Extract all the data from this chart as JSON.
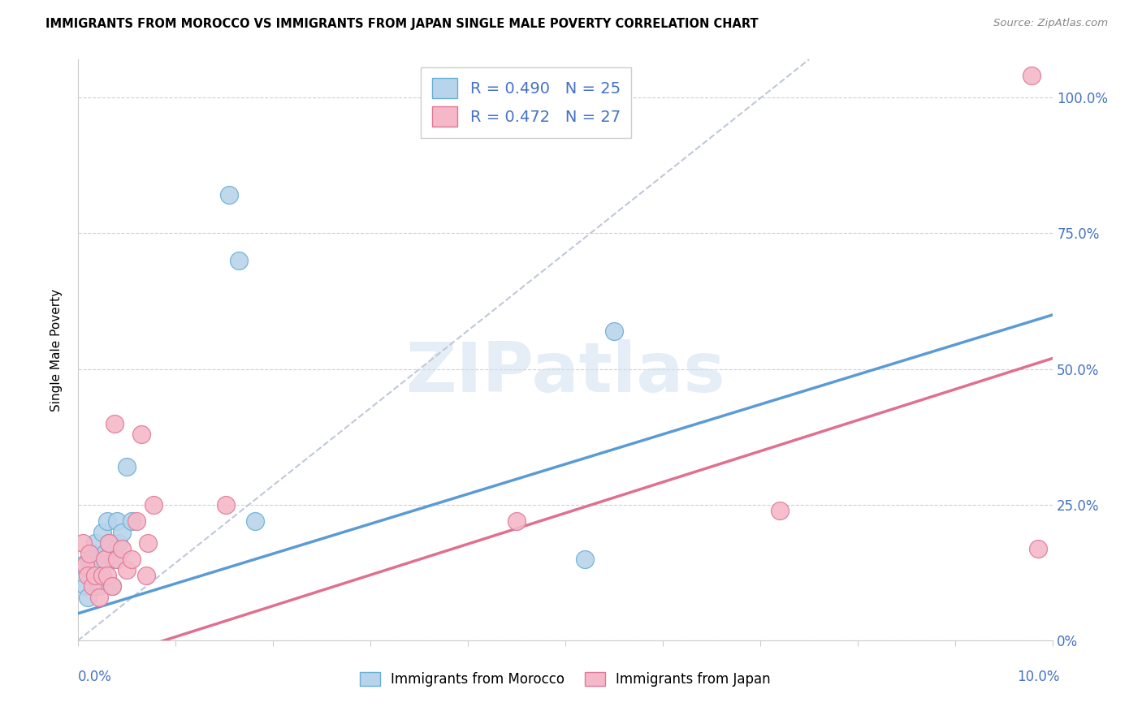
{
  "title": "IMMIGRANTS FROM MOROCCO VS IMMIGRANTS FROM JAPAN SINGLE MALE POVERTY CORRELATION CHART",
  "source": "Source: ZipAtlas.com",
  "ylabel": "Single Male Poverty",
  "color_morocco": "#b8d4ea",
  "color_japan": "#f5b8c8",
  "color_morocco_edge": "#6aaed6",
  "color_japan_edge": "#e07898",
  "color_morocco_line": "#5b9bd5",
  "color_japan_line": "#e07090",
  "color_dashed": "#c0c8d8",
  "watermark_color": "#d0dff0",
  "xlim": [
    0.0,
    10.0
  ],
  "ylim": [
    0.0,
    107.0
  ],
  "yticks": [
    0,
    25,
    50,
    75,
    100
  ],
  "ytick_labels_right": [
    "0%",
    "25.0%",
    "50.0%",
    "75.0%",
    "100.0%"
  ],
  "legend1_label": "R = 0.490   N = 25",
  "legend2_label": "R = 0.472   N = 27",
  "bottom_legend1": "Immigrants from Morocco",
  "bottom_legend2": "Immigrants from Japan",
  "morocco_x": [
    0.05,
    0.08,
    0.1,
    0.12,
    0.14,
    0.16,
    0.18,
    0.2,
    0.22,
    0.25,
    0.28,
    0.3,
    0.32,
    0.35,
    0.38,
    0.4,
    0.42,
    0.45,
    0.5,
    0.55,
    1.55,
    1.65,
    1.82,
    5.2,
    5.5
  ],
  "morocco_y": [
    14,
    10,
    8,
    15,
    12,
    16,
    18,
    14,
    10,
    20,
    16,
    22,
    18,
    10,
    15,
    22,
    18,
    20,
    32,
    22,
    82,
    70,
    22,
    15,
    57
  ],
  "japan_x": [
    0.05,
    0.08,
    0.1,
    0.12,
    0.15,
    0.18,
    0.22,
    0.25,
    0.28,
    0.3,
    0.32,
    0.35,
    0.38,
    0.4,
    0.45,
    0.5,
    0.55,
    0.6,
    0.65,
    0.7,
    0.72,
    0.78,
    1.52,
    4.5,
    7.2,
    9.78,
    9.85
  ],
  "japan_y": [
    18,
    14,
    12,
    16,
    10,
    12,
    8,
    12,
    15,
    12,
    18,
    10,
    40,
    15,
    17,
    13,
    15,
    22,
    38,
    12,
    18,
    25,
    25,
    22,
    24,
    104,
    17
  ],
  "morocco_trend": [
    5.0,
    60.0
  ],
  "japan_trend": [
    -5.0,
    52.0
  ],
  "dashed_line": [
    [
      0.0,
      0.0
    ],
    [
      7.5,
      107.0
    ]
  ]
}
